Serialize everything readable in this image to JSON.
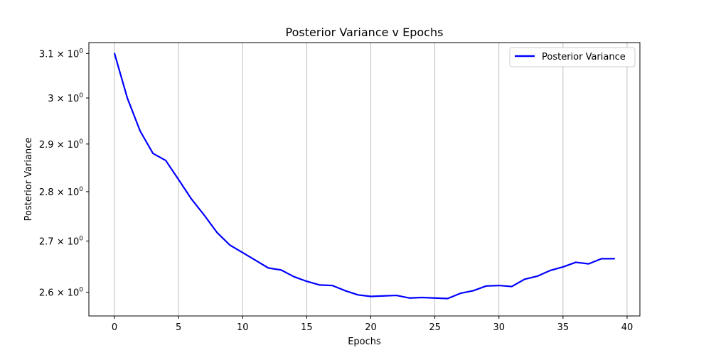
{
  "chart_data": {
    "type": "line",
    "title": "Posterior Variance v Epochs",
    "xlabel": "Epochs",
    "ylabel": "Posterior Variance",
    "xlim": [
      -2,
      41
    ],
    "ylim": [
      2.555,
      3.125
    ],
    "yscale": "log",
    "grid": "vertical",
    "legend_position": "top-right",
    "x_ticks": [
      0,
      5,
      10,
      15,
      20,
      25,
      30,
      35,
      40
    ],
    "y_ticks": [
      {
        "value": 2.6,
        "mantissa": "2.6"
      },
      {
        "value": 2.7,
        "mantissa": "2.7"
      },
      {
        "value": 2.8,
        "mantissa": "2.8"
      },
      {
        "value": 2.9,
        "mantissa": "2.9"
      },
      {
        "value": 3.0,
        "mantissa": "3"
      },
      {
        "value": 3.1,
        "mantissa": "3.1"
      }
    ],
    "y_tick_exponent_text": "× 10",
    "y_tick_exponent": "0",
    "series": [
      {
        "name": "Posterior Variance",
        "color": "#0000ff",
        "x": [
          0,
          1,
          2,
          3,
          4,
          5,
          6,
          7,
          8,
          9,
          10,
          11,
          12,
          13,
          14,
          15,
          16,
          17,
          18,
          19,
          20,
          21,
          22,
          23,
          24,
          25,
          26,
          27,
          28,
          29,
          30,
          31,
          32,
          33,
          34,
          35,
          36,
          37,
          38,
          39
        ],
        "values": [
          3.1,
          3.0,
          2.928,
          2.88,
          2.865,
          2.825,
          2.785,
          2.752,
          2.717,
          2.692,
          2.677,
          2.662,
          2.647,
          2.643,
          2.63,
          2.621,
          2.614,
          2.613,
          2.603,
          2.595,
          2.592,
          2.593,
          2.594,
          2.589,
          2.59,
          2.589,
          2.588,
          2.598,
          2.603,
          2.612,
          2.613,
          2.611,
          2.625,
          2.631,
          2.642,
          2.649,
          2.658,
          2.655,
          2.665,
          2.665
        ]
      }
    ]
  }
}
